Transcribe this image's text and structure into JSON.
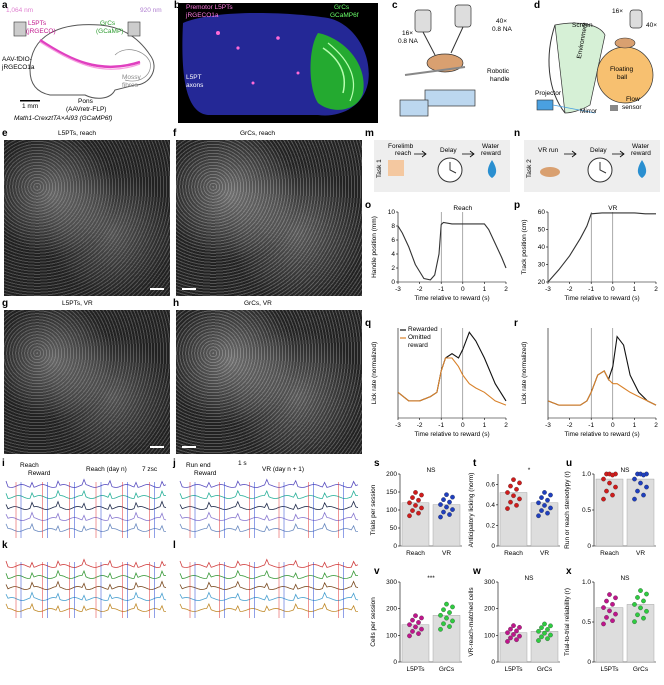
{
  "panel_labels": [
    "a",
    "b",
    "c",
    "d",
    "e",
    "f",
    "g",
    "h",
    "i",
    "j",
    "k",
    "l",
    "m",
    "n",
    "o",
    "p",
    "q",
    "r",
    "s",
    "t",
    "u",
    "v",
    "w",
    "x"
  ],
  "panel_a": {
    "wl1": "1,064 nm",
    "wl2": "920 nm",
    "l5pt": "L5PTs",
    "l5pt_ind": "(jRGECO)",
    "grc": "GrCs",
    "grc_ind": "(GCaMP)",
    "virus": "AAV-fDIO-",
    "virus2": "jRGECO1a",
    "mossy": "Mossy",
    "mossy2": "fibres",
    "pons": "Pons",
    "pons2": "(AAVretr-FLP)",
    "scale": "1 mm",
    "mouse_line": "Math1-CrexztTA×Ai93 (GCaMP6f)"
  },
  "panel_b": {
    "premotor": "Premotor L5PTs",
    "premotor2": "jRGECO1a",
    "grcs": "GrCs",
    "grcs2": "GCaMP6f",
    "axons": "L5PT",
    "axons2": "axons"
  },
  "panel_c": {
    "obj1": "16×",
    "obj1b": "0.8 NA",
    "obj2": "40×",
    "obj2b": "0.8 NA",
    "handle": "Robotic",
    "handle2": "handle"
  },
  "panel_d": {
    "screen": "Screen",
    "env": "Environment",
    "obj1": "16×",
    "obj2": "40×",
    "ball": "Floating",
    "ball2": "ball",
    "projector": "Projector",
    "mirror": "Mirror",
    "flow": "Flow",
    "flow2": "sensor"
  },
  "panel_e": {
    "title": "L5PTs, reach"
  },
  "panel_f": {
    "title": "GrCs, reach"
  },
  "panel_g": {
    "title": "L5PTs, VR"
  },
  "panel_h": {
    "title": "GrCs, VR"
  },
  "panel_i": {
    "title": "Reach (day n)",
    "ev1": "Reach",
    "ev2": "Reward",
    "scale": "7 zsc"
  },
  "panel_j": {
    "title": "VR (day n + 1)",
    "ev1": "Run end",
    "ev2": "Reward",
    "scale": "1 s"
  },
  "panel_m": {
    "task": "Task 1",
    "s1": "Forelimb",
    "s1b": "reach",
    "s2": "Delay",
    "s3": "Water",
    "s3b": "reward"
  },
  "panel_n": {
    "task": "Task 2",
    "s1": "VR run",
    "s2": "Delay",
    "s3": "Water",
    "s3b": "reward"
  },
  "colors": {
    "l5pt": "#c0158c",
    "grc": "#2ecc40",
    "reach": "#d01c1c",
    "vr": "#1f3fbf",
    "rewarded": "#111111",
    "omitted": "#d9822b"
  },
  "chart_data": [
    {
      "id": "o",
      "type": "line",
      "title": "Reach",
      "xlabel": "Time relative to reward (s)",
      "ylabel": "Handle position (mm)",
      "xlim": [
        -3,
        2
      ],
      "ylim": [
        0,
        10
      ],
      "xticks": [
        "-3",
        "-2",
        "-1",
        "0",
        "1",
        "2"
      ],
      "yticks": [
        "0",
        "2",
        "4",
        "6",
        "8",
        "10"
      ],
      "x": [
        -3,
        -2.8,
        -2.5,
        -2.2,
        -2.0,
        -1.8,
        -1.5,
        -1.3,
        -1.1,
        -1.0,
        -0.9,
        -0.5,
        0,
        0.5,
        1.0,
        1.2,
        1.5,
        1.8,
        2.0
      ],
      "y": [
        8,
        7,
        5,
        2.5,
        1.5,
        0.5,
        0.3,
        1,
        4,
        8.2,
        8.5,
        8.3,
        8.3,
        8.3,
        8.3,
        7.5,
        5.5,
        3.5,
        2
      ]
    },
    {
      "id": "p",
      "type": "line",
      "title": "VR",
      "xlabel": "Time relative to reward (s)",
      "ylabel": "Track position (cm)",
      "xlim": [
        -3,
        2
      ],
      "ylim": [
        20,
        60
      ],
      "xticks": [
        "-3",
        "-2",
        "-1",
        "0",
        "1",
        "2"
      ],
      "yticks": [
        "20",
        "30",
        "40",
        "50",
        "60"
      ],
      "x": [
        -3,
        -2.5,
        -2,
        -1.5,
        -1.2,
        -1,
        -0.5,
        0,
        0.5,
        1,
        1.5,
        2
      ],
      "y": [
        20,
        27,
        35,
        45,
        52,
        59,
        59.5,
        59.5,
        59.5,
        59.5,
        59,
        59
      ]
    },
    {
      "id": "q",
      "type": "line",
      "xlabel": "Time relative to reward (s)",
      "ylabel": "Lick rate (normalized)",
      "xlim": [
        -3,
        2
      ],
      "xticks": [
        "-3",
        "-2",
        "-1",
        "0",
        "1",
        "2"
      ],
      "series": [
        {
          "name": "Rewarded",
          "x": [
            -3,
            -2.5,
            -2,
            -1.5,
            -1.2,
            -1,
            -0.8,
            -0.5,
            -0.2,
            0,
            0.3,
            0.6,
            1,
            1.5,
            2
          ],
          "y": [
            0.3,
            0.2,
            0.2,
            0.25,
            0.3,
            0.55,
            0.7,
            0.75,
            0.7,
            0.8,
            1.0,
            0.9,
            0.7,
            0.4,
            0.2
          ]
        },
        {
          "name": "Omitted reward",
          "x": [
            -3,
            -2.5,
            -2,
            -1.5,
            -1.2,
            -1,
            -0.8,
            -0.5,
            -0.2,
            0,
            0.3,
            0.6,
            1,
            1.5,
            2
          ],
          "y": [
            0.3,
            0.2,
            0.2,
            0.25,
            0.3,
            0.55,
            0.7,
            0.7,
            0.6,
            0.5,
            0.4,
            0.35,
            0.3,
            0.2,
            0.15
          ]
        }
      ]
    },
    {
      "id": "r",
      "type": "line",
      "xlabel": "Time relative to reward (s)",
      "ylabel": "Lick rate (normalized)",
      "xlim": [
        -3,
        2
      ],
      "xticks": [
        "-3",
        "-2",
        "-1",
        "0",
        "1",
        "2"
      ],
      "series": [
        {
          "name": "Rewarded",
          "x": [
            -3,
            -2.5,
            -2,
            -1.5,
            -1.2,
            -1,
            -0.7,
            -0.4,
            -0.2,
            0,
            0.2,
            0.5,
            0.8,
            1.2,
            1.6,
            2
          ],
          "y": [
            0.2,
            0.15,
            0.15,
            0.15,
            0.2,
            0.3,
            0.5,
            0.55,
            0.45,
            0.6,
            0.95,
            0.85,
            0.5,
            0.3,
            0.2,
            0.15
          ]
        },
        {
          "name": "Omitted reward",
          "x": [
            -3,
            -2.5,
            -2,
            -1.5,
            -1.2,
            -1,
            -0.7,
            -0.4,
            -0.2,
            0,
            0.2,
            0.5,
            0.8,
            1.2,
            1.6,
            2
          ],
          "y": [
            0.2,
            0.15,
            0.15,
            0.15,
            0.2,
            0.3,
            0.5,
            0.55,
            0.45,
            0.4,
            0.4,
            0.35,
            0.3,
            0.25,
            0.2,
            0.15
          ]
        }
      ]
    },
    {
      "id": "s",
      "type": "bar",
      "ylabel": "Trials per session",
      "categories": [
        "Reach",
        "VR"
      ],
      "values": [
        120,
        115
      ],
      "ylim": [
        0,
        200
      ],
      "yticks": [
        "0",
        "50",
        "100",
        "150",
        "200"
      ],
      "sig": "NS"
    },
    {
      "id": "t",
      "type": "bar",
      "ylabel": "Anticipatory licking (norm)",
      "categories": [
        "Reach",
        "VR"
      ],
      "values": [
        0.52,
        0.42
      ],
      "ylim": [
        0,
        0.7
      ],
      "yticks": [
        "0",
        "0.2",
        "0.4",
        "0.6"
      ],
      "sig": "*"
    },
    {
      "id": "u",
      "type": "bar",
      "ylabel": "Run or reach stereotypy (r)",
      "categories": [
        "Reach",
        "VR"
      ],
      "values": [
        0.93,
        0.93
      ],
      "ylim": [
        0,
        1
      ],
      "yticks": [
        "0",
        "0.5",
        "1.0"
      ],
      "sig": "NS"
    },
    {
      "id": "v",
      "type": "bar",
      "ylabel": "Cells per session",
      "categories": [
        "L5PTs",
        "GrCs"
      ],
      "values": [
        140,
        175
      ],
      "ylim": [
        0,
        300
      ],
      "yticks": [
        "0",
        "100",
        "200",
        "300"
      ],
      "sig": "***"
    },
    {
      "id": "w",
      "type": "bar",
      "ylabel": "VR-reach-matched cells",
      "categories": [
        "L5PTs",
        "GrCs"
      ],
      "values": [
        110,
        115
      ],
      "ylim": [
        0,
        300
      ],
      "yticks": [
        "0",
        "100",
        "200",
        "300"
      ],
      "sig": "NS"
    },
    {
      "id": "x",
      "type": "bar",
      "ylabel": "Trial-to-trial reliability (r)",
      "categories": [
        "L5PTs",
        "GrCs"
      ],
      "values": [
        0.68,
        0.72
      ],
      "ylim": [
        0,
        1
      ],
      "yticks": [
        "0",
        "0.5",
        "1.0"
      ],
      "sig": "NS"
    }
  ],
  "legend_q": {
    "rewarded": "Rewarded",
    "omitted": "Omitted",
    "omitted2": "reward"
  }
}
